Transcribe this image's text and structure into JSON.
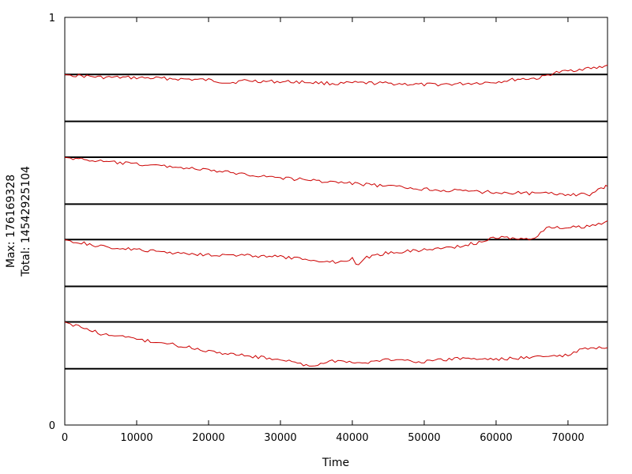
{
  "chart_data": {
    "type": "line",
    "title": "",
    "xlabel": "Time",
    "ylabel_lines": [
      "Max: 176169328",
      "Total: 14542925104"
    ],
    "x_ticks": [
      "0",
      "10000",
      "20000",
      "30000",
      "40000",
      "50000",
      "60000",
      "70000"
    ],
    "x_tick_values": [
      0,
      10000,
      20000,
      30000,
      40000,
      50000,
      60000,
      70000
    ],
    "xlim": [
      0,
      75500
    ],
    "y_ticks": [
      "0",
      "1"
    ],
    "ylim": [
      0,
      1
    ],
    "grid": false,
    "line_color": "#cc0000",
    "band_line_color": "#000000",
    "bands": [
      {
        "bottom": 0.86,
        "top": 0.745,
        "points": [
          [
            0,
            0.004
          ],
          [
            5000,
            0.06
          ],
          [
            10000,
            0.07
          ],
          [
            15000,
            0.09
          ],
          [
            20000,
            0.12
          ],
          [
            23000,
            0.18
          ],
          [
            25000,
            0.13
          ],
          [
            28000,
            0.15
          ],
          [
            33000,
            0.16
          ],
          [
            38000,
            0.2
          ],
          [
            40000,
            0.18
          ],
          [
            45000,
            0.19
          ],
          [
            50000,
            0.22
          ],
          [
            55000,
            0.2
          ],
          [
            60000,
            0.16
          ],
          [
            63000,
            0.1
          ],
          [
            66000,
            0.08
          ],
          [
            68000,
            -0.03
          ],
          [
            72000,
            -0.12
          ],
          [
            74000,
            -0.14
          ],
          [
            75500,
            -0.2
          ]
        ]
      },
      {
        "bottom": 0.657,
        "top": 0.542,
        "points": [
          [
            0,
            0.004
          ],
          [
            5000,
            0.09
          ],
          [
            10000,
            0.15
          ],
          [
            15000,
            0.2
          ],
          [
            20000,
            0.28
          ],
          [
            25000,
            0.36
          ],
          [
            30000,
            0.44
          ],
          [
            35000,
            0.5
          ],
          [
            40000,
            0.56
          ],
          [
            45000,
            0.62
          ],
          [
            50000,
            0.68
          ],
          [
            55000,
            0.72
          ],
          [
            60000,
            0.75
          ],
          [
            65000,
            0.77
          ],
          [
            70000,
            0.79
          ],
          [
            73000,
            0.8
          ],
          [
            75000,
            0.65
          ],
          [
            75500,
            0.62
          ]
        ]
      },
      {
        "bottom": 0.455,
        "top": 0.34,
        "points": [
          [
            0,
            0.004
          ],
          [
            5000,
            0.15
          ],
          [
            10000,
            0.22
          ],
          [
            15000,
            0.28
          ],
          [
            20000,
            0.32
          ],
          [
            25000,
            0.34
          ],
          [
            30000,
            0.37
          ],
          [
            35000,
            0.45
          ],
          [
            38000,
            0.48
          ],
          [
            40000,
            0.4
          ],
          [
            40500,
            0.55
          ],
          [
            42000,
            0.38
          ],
          [
            45000,
            0.28
          ],
          [
            50000,
            0.22
          ],
          [
            55000,
            0.14
          ],
          [
            58000,
            0.05
          ],
          [
            60000,
            -0.05
          ],
          [
            65000,
            0.0
          ],
          [
            67000,
            -0.25
          ],
          [
            70000,
            -0.25
          ],
          [
            73000,
            -0.28
          ],
          [
            75500,
            -0.4
          ]
        ]
      },
      {
        "bottom": 0.253,
        "top": 0.138,
        "points": [
          [
            0,
            0.004
          ],
          [
            5000,
            0.25
          ],
          [
            10000,
            0.37
          ],
          [
            15000,
            0.48
          ],
          [
            20000,
            0.62
          ],
          [
            25000,
            0.72
          ],
          [
            30000,
            0.8
          ],
          [
            34000,
            0.94
          ],
          [
            38000,
            0.82
          ],
          [
            40000,
            0.85
          ],
          [
            41000,
            0.9
          ],
          [
            45000,
            0.8
          ],
          [
            50000,
            0.85
          ],
          [
            55000,
            0.78
          ],
          [
            60000,
            0.8
          ],
          [
            65000,
            0.75
          ],
          [
            70000,
            0.72
          ],
          [
            72000,
            0.58
          ],
          [
            75500,
            0.55
          ]
        ]
      }
    ]
  }
}
